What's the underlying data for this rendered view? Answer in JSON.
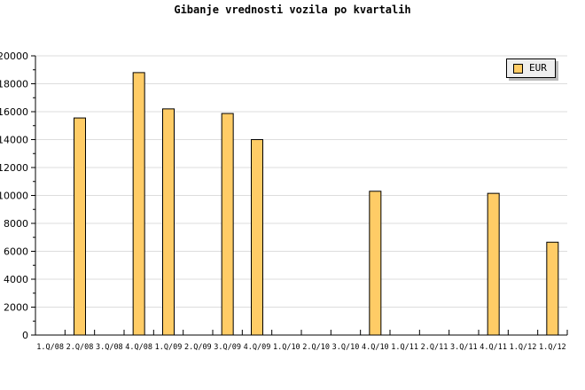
{
  "chart_data": {
    "type": "bar",
    "title": "Gibanje vrednosti vozila po kvartalih",
    "categories": [
      "1.Q/08",
      "2.Q/08",
      "3.Q/08",
      "4.Q/08",
      "1.Q/09",
      "2.Q/09",
      "3.Q/09",
      "4.Q/09",
      "1.Q/10",
      "2.Q/10",
      "3.Q/10",
      "4.Q/10",
      "1.Q/11",
      "2.Q/11",
      "3.Q/11",
      "4.Q/11",
      "1.Q/12",
      "1.Q/12"
    ],
    "series": [
      {
        "name": "EUR",
        "values": [
          0,
          15550,
          0,
          18800,
          16200,
          0,
          15870,
          14000,
          0,
          0,
          0,
          10300,
          0,
          0,
          0,
          10150,
          0,
          6650
        ]
      }
    ],
    "ylim": [
      0,
      20000
    ],
    "yticks": [
      0,
      2000,
      4000,
      6000,
      8000,
      10000,
      12000,
      14000,
      16000,
      18000,
      20000
    ],
    "grid": true,
    "legend": "top-right",
    "colors": {
      "bar": "#ffcc66",
      "grid": "#dddddd"
    }
  }
}
